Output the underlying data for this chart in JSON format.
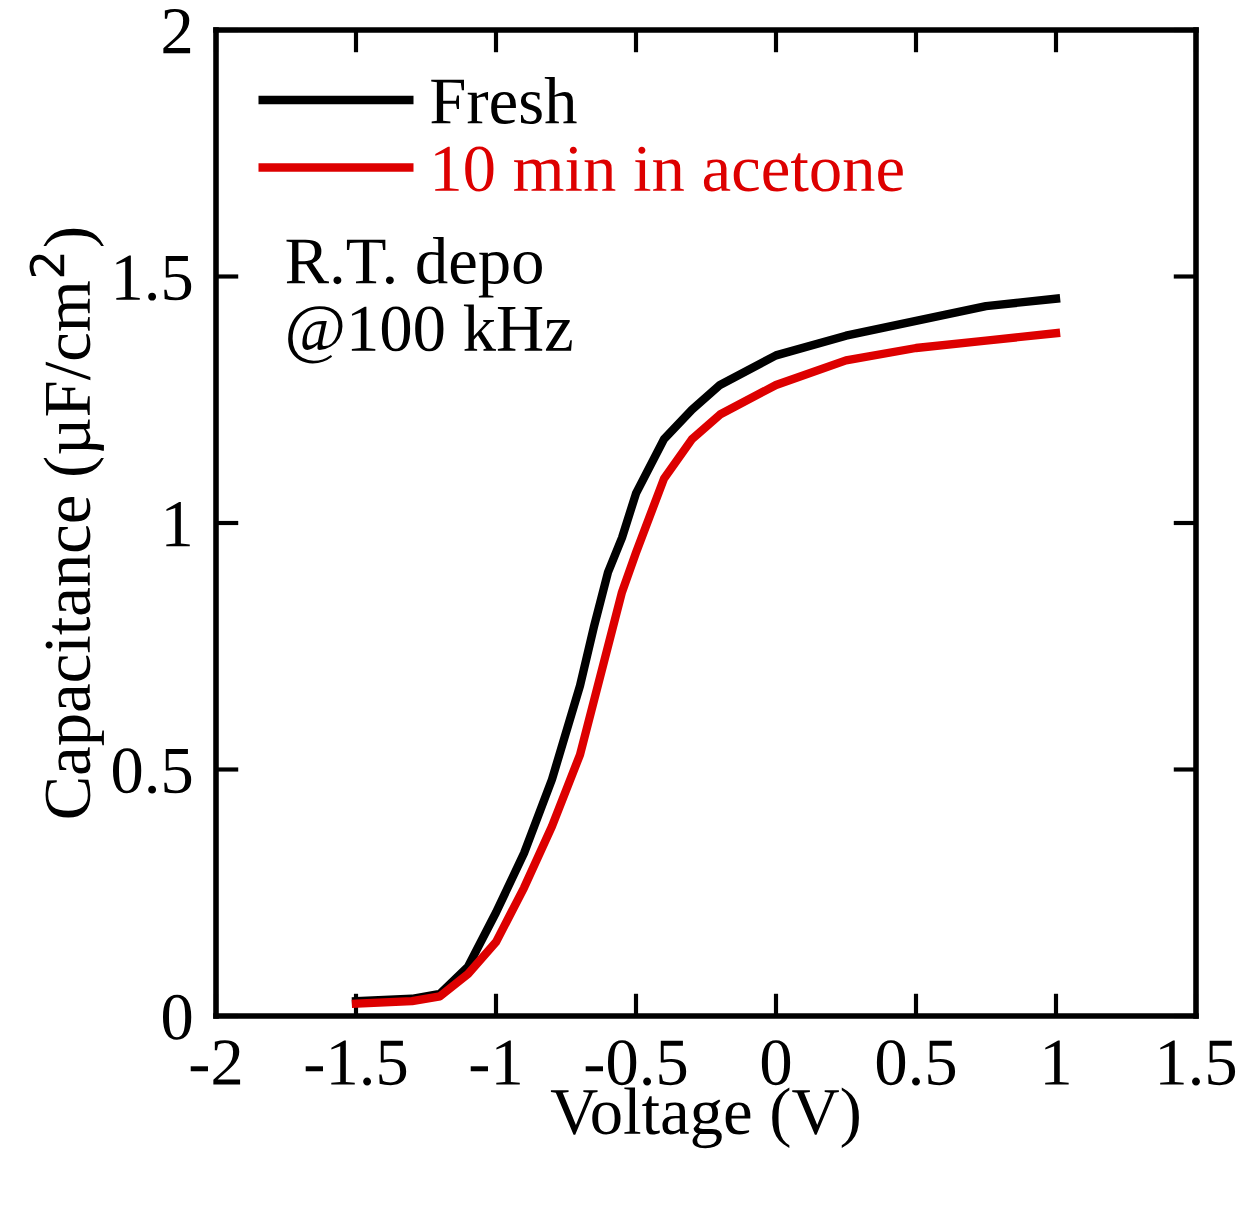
{
  "chart_data": {
    "type": "line",
    "xlabel": "Voltage (V)",
    "ylabel": "Capacitance (µF/cm$^{2}$)",
    "xlim": [
      -2,
      1.5
    ],
    "xticks": [
      -2,
      -1.5,
      -1,
      -0.5,
      0,
      0.5,
      1,
      1.5
    ],
    "ylim": [
      0,
      2
    ],
    "yticks": [
      0,
      0.5,
      1,
      1.5,
      2
    ],
    "grid": false,
    "legend": "top left",
    "marker": "none",
    "line_style": "solid",
    "annotations": [
      "R.T. depo\n@100 kHz"
    ],
    "series": [
      {
        "name": "Fresh",
        "color": "#000000",
        "x": [
          -1.5,
          -1.3,
          -1.2,
          -1.1,
          -1.0,
          -0.9,
          -0.8,
          -0.7,
          -0.65,
          -0.6,
          -0.55,
          -0.5,
          -0.4,
          -0.3,
          -0.2,
          0,
          0.25,
          0.5,
          0.75,
          1
        ],
        "values": [
          0.03,
          0.035,
          0.045,
          0.1,
          0.21,
          0.33,
          0.48,
          0.67,
          0.79,
          0.9,
          0.97,
          1.06,
          1.17,
          1.23,
          1.28,
          1.34,
          1.38,
          1.41,
          1.44,
          1.455
        ]
      },
      {
        "name": "10 min in acetone",
        "color": "#dd0000",
        "x": [
          -1.5,
          -1.3,
          -1.2,
          -1.1,
          -1.0,
          -0.9,
          -0.8,
          -0.7,
          -0.6,
          -0.55,
          -0.5,
          -0.4,
          -0.3,
          -0.2,
          0,
          0.25,
          0.5,
          0.75,
          1
        ],
        "values": [
          0.025,
          0.03,
          0.04,
          0.085,
          0.15,
          0.26,
          0.385,
          0.53,
          0.75,
          0.86,
          0.94,
          1.09,
          1.17,
          1.22,
          1.28,
          1.33,
          1.355,
          1.37,
          1.385
        ]
      }
    ]
  }
}
